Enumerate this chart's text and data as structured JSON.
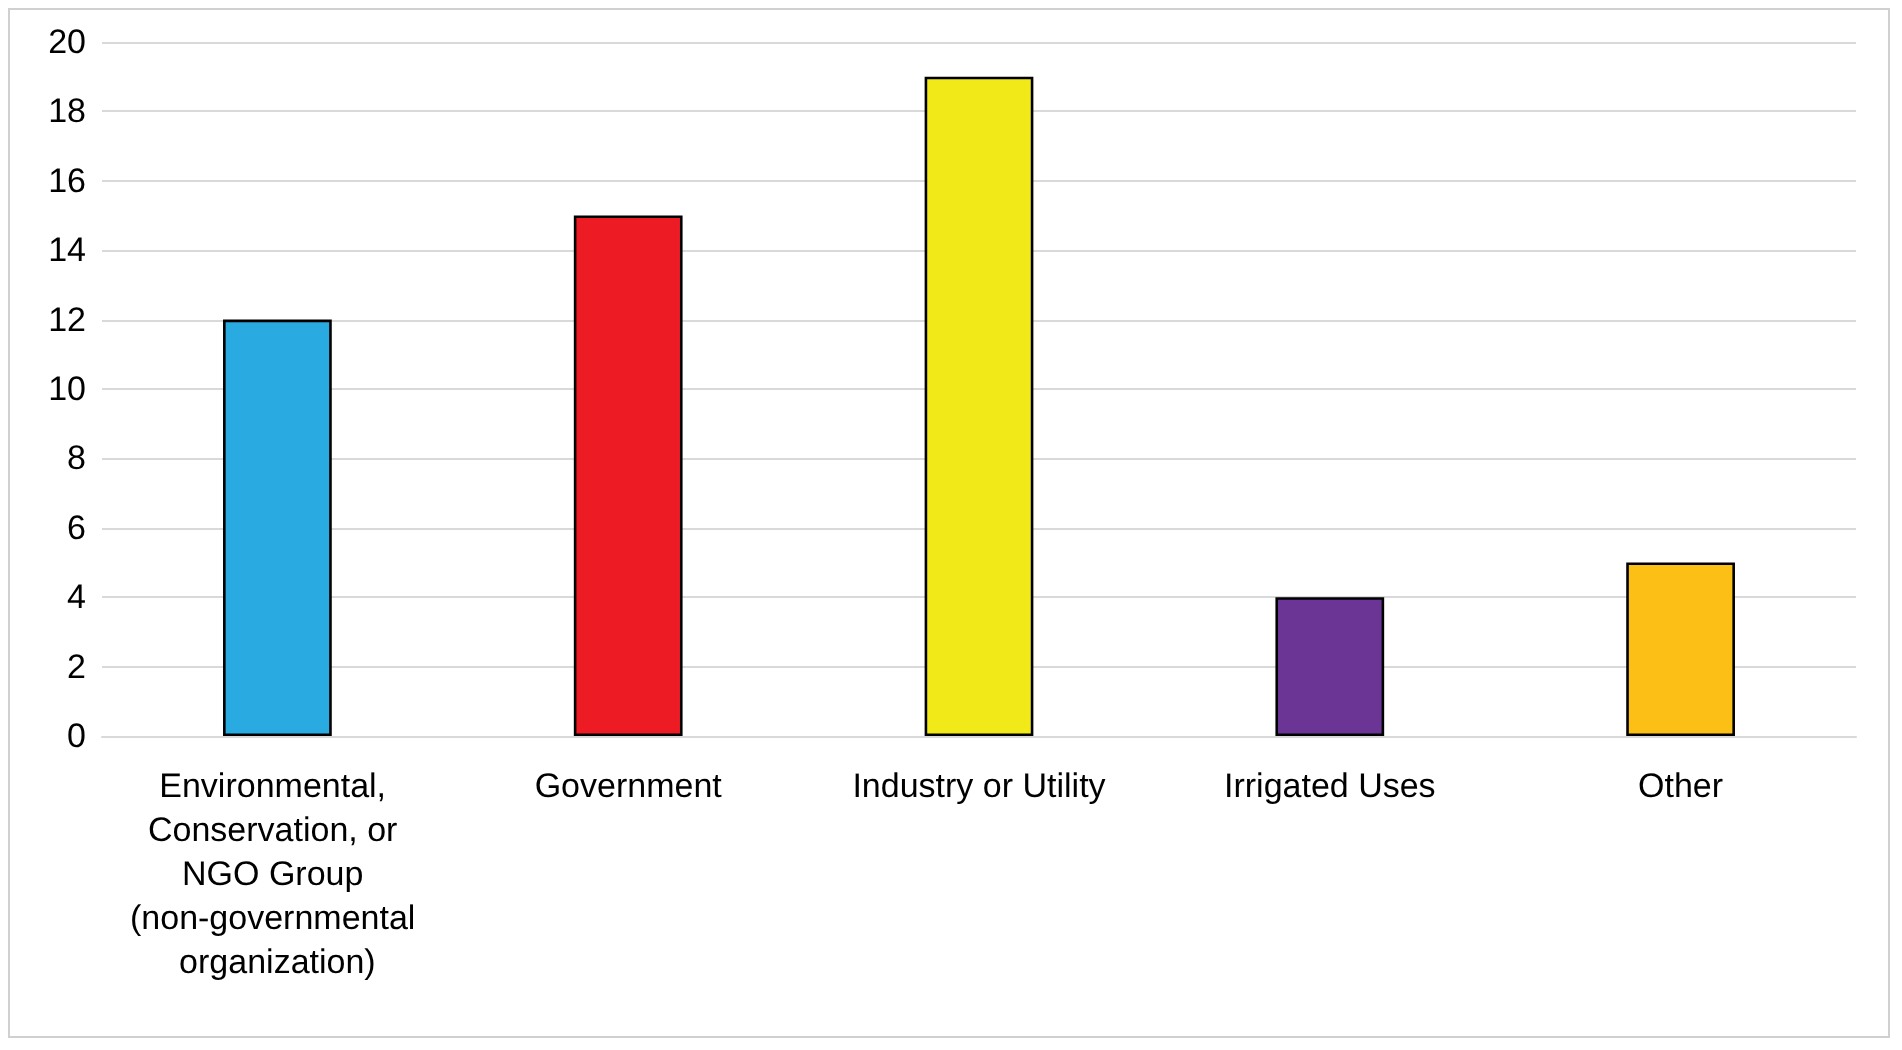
{
  "chart_data": {
    "type": "bar",
    "categories": [
      "Environmental, Conservation, or NGO Group (non-governmental organization)",
      "Government",
      "Industry or Utility",
      "Irrigated Uses",
      "Other"
    ],
    "values": [
      12,
      15,
      19,
      4,
      5
    ],
    "colors": [
      "#29abe2",
      "#ed1c24",
      "#f2ea18",
      "#6a3594",
      "#fbbf16"
    ],
    "ylim": [
      0,
      20
    ],
    "yticks": [
      0,
      2,
      4,
      6,
      8,
      10,
      12,
      14,
      16,
      18,
      20
    ],
    "grid": "y"
  }
}
